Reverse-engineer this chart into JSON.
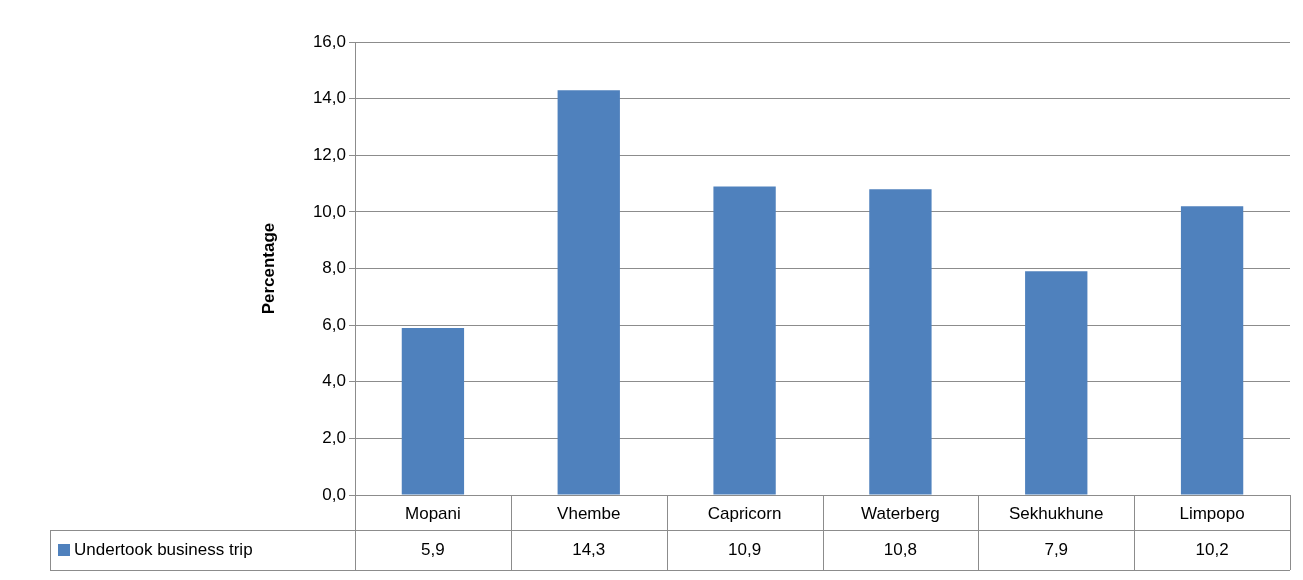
{
  "chart_data": {
    "type": "bar",
    "ylabel": "Percentage",
    "categories": [
      "Mopani",
      "Vhembe",
      "Capricorn",
      "Waterberg",
      "Sekhukhune",
      "Limpopo"
    ],
    "series": [
      {
        "name": "Undertook business trip",
        "color": "#4f81bd",
        "values": [
          5.9,
          14.3,
          10.9,
          10.8,
          7.9,
          10.2
        ],
        "value_labels": [
          "5,9",
          "14,3",
          "10,9",
          "10,8",
          "7,9",
          "10,2"
        ]
      }
    ],
    "ylim": [
      0,
      16
    ],
    "yticks": [
      {
        "value": 0,
        "label": "0,0"
      },
      {
        "value": 2,
        "label": "2,0"
      },
      {
        "value": 4,
        "label": "4,0"
      },
      {
        "value": 6,
        "label": "6,0"
      },
      {
        "value": 8,
        "label": "8,0"
      },
      {
        "value": 10,
        "label": "10,0"
      },
      {
        "value": 12,
        "label": "12,0"
      },
      {
        "value": 14,
        "label": "14,0"
      },
      {
        "value": 16,
        "label": "16,0"
      }
    ],
    "grid": "y",
    "legend": "bottom"
  }
}
